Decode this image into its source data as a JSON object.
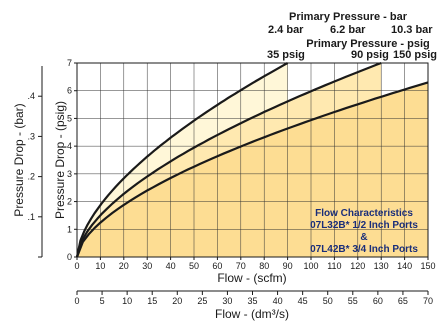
{
  "chart_data": {
    "type": "line",
    "title_bar": "Primary Pressure - bar",
    "title_psig": "Primary Pressure - psig",
    "series": [
      {
        "bar_label": "2.4 bar",
        "psig_label": "35 psig",
        "x_end": 90,
        "y_end": 7.0
      },
      {
        "bar_label": "6.2 bar",
        "psig_label": "90 psig",
        "x_end": 130,
        "y_end": 7.0
      },
      {
        "bar_label": "10.3 bar",
        "psig_label": "150 psig",
        "x_end": 150,
        "y_end": 6.3
      }
    ],
    "x_primary": {
      "label": "Flow - (scfm)",
      "range": [
        0,
        150
      ],
      "ticks": [
        "0",
        "10",
        "20",
        "30",
        "40",
        "50",
        "60",
        "70",
        "80",
        "90",
        "100",
        "110",
        "120",
        "130",
        "140",
        "150"
      ]
    },
    "x_secondary": {
      "label": "Flow - (dm³/s)",
      "range": [
        0,
        70
      ],
      "ticks": [
        "0",
        "5",
        "10",
        "15",
        "20",
        "25",
        "30",
        "35",
        "40",
        "45",
        "50",
        "55",
        "60",
        "65",
        "70"
      ]
    },
    "y_primary": {
      "label": "Pressure Drop - (psig)",
      "range": [
        0,
        7
      ],
      "ticks": [
        "0",
        "1",
        "2",
        "3",
        "4",
        "5",
        "6",
        "7"
      ]
    },
    "y_secondary": {
      "label": "Pressure Drop - (bar)",
      "ticks": [
        ".1",
        ".2",
        ".3",
        ".4"
      ],
      "tick_values": [
        0.1,
        0.2,
        0.3,
        0.4
      ]
    },
    "annotation": [
      "Flow Characteristics",
      "07L32B* 1/2 Inch Ports",
      "&",
      "07L42B* 3/4 Inch Ports"
    ],
    "grid": true,
    "colors": {
      "fill_light": "#fff7d8",
      "fill_mid": "#ffe9b0",
      "fill_dark": "#fddd93",
      "line": "#1a1a1a",
      "grid": "#333333",
      "annotation": "#1a2e7a"
    }
  }
}
